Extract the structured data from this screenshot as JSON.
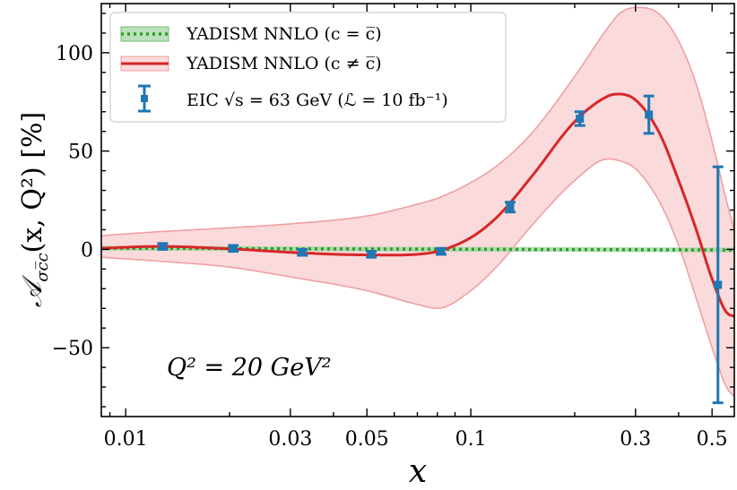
{
  "chart_data": {
    "type": "line",
    "x_scale": "log",
    "xlim": [
      0.0085,
      0.58
    ],
    "ylim": [
      -85,
      125
    ],
    "x_ticks": [
      0.01,
      0.03,
      0.05,
      0.1,
      0.3,
      0.5
    ],
    "x_tick_labels": [
      "0.01",
      "0.03",
      "0.05",
      "0.1",
      "0.3",
      "0.5"
    ],
    "y_ticks": [
      -50,
      0,
      50,
      100
    ],
    "y_tick_labels": [
      "−50",
      "0",
      "50",
      "100"
    ],
    "xlabel": "x",
    "ylabel_prefix": "𝒜",
    "ylabel_sub": "σc̅c",
    "ylabel_rest": "(x, Q²) [%]",
    "annotation": "Q² = 20 GeV²",
    "legend_position": "upper-left",
    "colors": {
      "green": "#2ca02c",
      "red": "#d62728",
      "band": "#fadadb",
      "band_edge": "#f0a0a3",
      "blue": "#1f77b4"
    },
    "series": [
      {
        "name": "YADISM NNLO (c = c̅)",
        "style": "dotted",
        "x": [
          0.0085,
          0.58
        ],
        "y": [
          0.6,
          -0.3
        ],
        "band_width": 1.2
      },
      {
        "name": "YADISM NNLO (c ≠ c̅)",
        "style": "solid",
        "x": [
          0.0085,
          0.0125,
          0.02,
          0.03,
          0.05,
          0.07,
          0.08,
          0.1,
          0.12,
          0.15,
          0.2,
          0.25,
          0.27,
          0.3,
          0.35,
          0.4,
          0.45,
          0.5,
          0.55,
          0.58
        ],
        "y": [
          0.6,
          1.5,
          0.3,
          -1.5,
          -2.8,
          -2.5,
          -1.0,
          6,
          17,
          37,
          65,
          78,
          79,
          76,
          60,
          35,
          10,
          -15,
          -32,
          -34
        ],
        "band_upper": [
          7,
          9,
          11,
          13,
          17,
          23,
          26,
          34,
          43,
          59,
          88,
          113,
          120,
          123,
          120,
          106,
          84,
          55,
          25,
          10
        ],
        "band_lower": [
          -4,
          -6,
          -9,
          -14,
          -21,
          -28,
          -30,
          -21,
          -8,
          12,
          35,
          46,
          45,
          41,
          25,
          2,
          -25,
          -50,
          -70,
          -75
        ]
      },
      {
        "name": "EIC √s = 63 GeV (ℒ = 10 fb⁻¹)",
        "style": "errorbar",
        "x": [
          0.0128,
          0.0205,
          0.0325,
          0.0515,
          0.082,
          0.13,
          0.207,
          0.328,
          0.52
        ],
        "y": [
          1.5,
          0.5,
          -1.5,
          -2.5,
          -1.0,
          21.5,
          66.5,
          68.5,
          -18
        ],
        "yerr": [
          1.5,
          1.5,
          1.5,
          1.5,
          1.5,
          2.5,
          3.5,
          9.5,
          60
        ]
      }
    ]
  }
}
